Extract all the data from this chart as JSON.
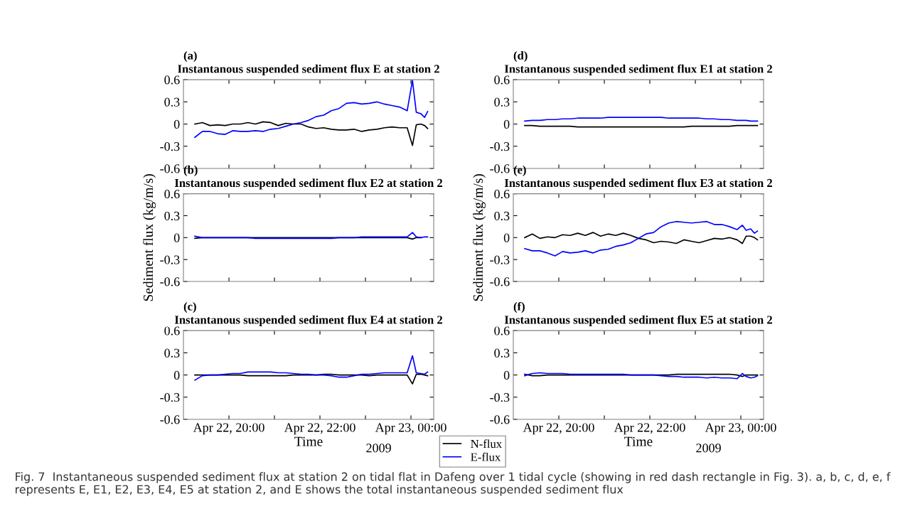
{
  "chart_data": [
    {
      "type": "line",
      "title": "(a)",
      "subtitle": "Instantanous suspended sediment flux E at station 2",
      "tick_labels": "y",
      "x": [
        "2009-04-22T19:15",
        "2009-04-22T19:25",
        "2009-04-22T19:35",
        "2009-04-22T19:45",
        "2009-04-22T19:55",
        "2009-04-22T20:05",
        "2009-04-22T20:15",
        "2009-04-22T20:25",
        "2009-04-22T20:35",
        "2009-04-22T20:45",
        "2009-04-22T20:55",
        "2009-04-22T21:05",
        "2009-04-22T21:15",
        "2009-04-22T21:25",
        "2009-04-22T21:35",
        "2009-04-22T21:45",
        "2009-04-22T21:55",
        "2009-04-22T22:05",
        "2009-04-22T22:15",
        "2009-04-22T22:25",
        "2009-04-22T22:35",
        "2009-04-22T22:45",
        "2009-04-22T22:55",
        "2009-04-22T23:05",
        "2009-04-22T23:15",
        "2009-04-22T23:25",
        "2009-04-22T23:35",
        "2009-04-22T23:45",
        "2009-04-22T23:55",
        "2009-04-23T00:02",
        "2009-04-23T00:07",
        "2009-04-23T00:13",
        "2009-04-23T00:18",
        "2009-04-23T00:22"
      ],
      "xlim": [
        "2009-04-22T19:00",
        "2009-04-23T00:30"
      ],
      "xticks": [
        {
          "value": "2009-04-22T20:00",
          "label": null
        },
        {
          "value": "2009-04-22T21:00",
          "label": null
        },
        {
          "value": "2009-04-22T22:00",
          "label": null
        },
        {
          "value": "2009-04-22T23:00",
          "label": null
        },
        {
          "value": "2009-04-23T00:00",
          "label": null
        }
      ],
      "ylim": [
        -0.6,
        0.6
      ],
      "yticks": [
        -0.6,
        -0.3,
        0,
        0.3,
        0.6
      ],
      "series": [
        {
          "color": "#000000",
          "values": [
            0.0,
            0.02,
            -0.02,
            -0.01,
            -0.02,
            0.0,
            0.0,
            0.02,
            0.0,
            0.03,
            0.02,
            -0.02,
            0.01,
            0.0,
            0.0,
            -0.04,
            -0.06,
            -0.05,
            -0.07,
            -0.08,
            -0.08,
            -0.07,
            -0.1,
            -0.08,
            -0.07,
            -0.05,
            -0.04,
            -0.05,
            -0.05,
            -0.29,
            -0.01,
            0.0,
            -0.02,
            -0.06
          ]
        },
        {
          "color": "#0000ff",
          "values": [
            -0.18,
            -0.1,
            -0.1,
            -0.13,
            -0.14,
            -0.09,
            -0.1,
            -0.1,
            -0.09,
            -0.1,
            -0.07,
            -0.06,
            -0.03,
            0.0,
            0.02,
            0.05,
            0.1,
            0.12,
            0.18,
            0.21,
            0.28,
            0.29,
            0.27,
            0.28,
            0.3,
            0.27,
            0.25,
            0.23,
            0.18,
            0.59,
            0.16,
            0.14,
            0.09,
            0.17
          ]
        }
      ]
    },
    {
      "type": "line",
      "title": "(d)",
      "subtitle": "Instantanous suspended sediment flux E1 at station 2",
      "tick_labels": "y",
      "x": [
        "2009-04-22T19:15",
        "2009-04-22T19:25",
        "2009-04-22T19:35",
        "2009-04-22T19:45",
        "2009-04-22T19:55",
        "2009-04-22T20:05",
        "2009-04-22T20:15",
        "2009-04-22T20:25",
        "2009-04-22T20:35",
        "2009-04-22T20:45",
        "2009-04-22T20:55",
        "2009-04-22T21:05",
        "2009-04-22T21:15",
        "2009-04-22T21:25",
        "2009-04-22T21:35",
        "2009-04-22T21:45",
        "2009-04-22T21:55",
        "2009-04-22T22:05",
        "2009-04-22T22:15",
        "2009-04-22T22:25",
        "2009-04-22T22:35",
        "2009-04-22T22:45",
        "2009-04-22T22:55",
        "2009-04-22T23:05",
        "2009-04-22T23:15",
        "2009-04-22T23:25",
        "2009-04-22T23:35",
        "2009-04-22T23:45",
        "2009-04-22T23:55",
        "2009-04-23T00:02",
        "2009-04-23T00:07",
        "2009-04-23T00:13",
        "2009-04-23T00:18",
        "2009-04-23T00:22"
      ],
      "xlim": [
        "2009-04-22T19:00",
        "2009-04-23T00:30"
      ],
      "xticks": [
        {
          "value": "2009-04-22T20:00",
          "label": null
        },
        {
          "value": "2009-04-22T21:00",
          "label": null
        },
        {
          "value": "2009-04-22T22:00",
          "label": null
        },
        {
          "value": "2009-04-22T23:00",
          "label": null
        },
        {
          "value": "2009-04-23T00:00",
          "label": null
        }
      ],
      "ylim": [
        -0.6,
        0.6
      ],
      "yticks": [
        -0.6,
        -0.3,
        0,
        0.3,
        0.6
      ],
      "series": [
        {
          "color": "#000000",
          "values": [
            -0.02,
            -0.02,
            -0.03,
            -0.03,
            -0.03,
            -0.03,
            -0.03,
            -0.04,
            -0.04,
            -0.04,
            -0.04,
            -0.04,
            -0.04,
            -0.04,
            -0.04,
            -0.04,
            -0.04,
            -0.04,
            -0.04,
            -0.04,
            -0.04,
            -0.04,
            -0.03,
            -0.03,
            -0.03,
            -0.03,
            -0.03,
            -0.03,
            -0.02,
            -0.02,
            -0.02,
            -0.02,
            -0.02,
            -0.02
          ]
        },
        {
          "color": "#0000ff",
          "values": [
            0.04,
            0.05,
            0.05,
            0.06,
            0.06,
            0.07,
            0.07,
            0.08,
            0.08,
            0.08,
            0.08,
            0.09,
            0.09,
            0.09,
            0.09,
            0.09,
            0.09,
            0.09,
            0.09,
            0.08,
            0.08,
            0.08,
            0.08,
            0.08,
            0.07,
            0.07,
            0.06,
            0.06,
            0.05,
            0.05,
            0.05,
            0.04,
            0.04,
            0.04
          ]
        }
      ]
    },
    {
      "type": "line",
      "title": "(b)",
      "subtitle": "Instantanous suspended sediment flux E2 at station 2",
      "ylabel": "Sediment flux (kg/m/s)",
      "tick_labels": "y",
      "x": [
        "2009-04-22T19:15",
        "2009-04-22T19:25",
        "2009-04-22T19:35",
        "2009-04-22T19:45",
        "2009-04-22T19:55",
        "2009-04-22T20:05",
        "2009-04-22T20:15",
        "2009-04-22T20:25",
        "2009-04-22T20:35",
        "2009-04-22T20:45",
        "2009-04-22T20:55",
        "2009-04-22T21:05",
        "2009-04-22T21:15",
        "2009-04-22T21:25",
        "2009-04-22T21:35",
        "2009-04-22T21:45",
        "2009-04-22T21:55",
        "2009-04-22T22:05",
        "2009-04-22T22:15",
        "2009-04-22T22:25",
        "2009-04-22T22:35",
        "2009-04-22T22:45",
        "2009-04-22T22:55",
        "2009-04-22T23:05",
        "2009-04-22T23:15",
        "2009-04-22T23:25",
        "2009-04-22T23:35",
        "2009-04-22T23:45",
        "2009-04-22T23:55",
        "2009-04-23T00:02",
        "2009-04-23T00:07",
        "2009-04-23T00:13",
        "2009-04-23T00:18",
        "2009-04-23T00:22"
      ],
      "xlim": [
        "2009-04-22T19:00",
        "2009-04-23T00:30"
      ],
      "xticks": [
        {
          "value": "2009-04-22T20:00",
          "label": null
        },
        {
          "value": "2009-04-22T21:00",
          "label": null
        },
        {
          "value": "2009-04-22T22:00",
          "label": null
        },
        {
          "value": "2009-04-22T23:00",
          "label": null
        },
        {
          "value": "2009-04-23T00:00",
          "label": null
        }
      ],
      "ylim": [
        -0.6,
        0.6
      ],
      "yticks": [
        -0.6,
        -0.3,
        0,
        0.3,
        0.6
      ],
      "series": [
        {
          "color": "#000000",
          "values": [
            -0.01,
            0.0,
            0.0,
            0.0,
            0.0,
            0.0,
            0.0,
            0.0,
            0.0,
            0.0,
            0.0,
            0.0,
            0.0,
            0.0,
            0.0,
            0.0,
            0.0,
            0.0,
            0.0,
            0.0,
            0.0,
            0.0,
            0.0,
            0.0,
            0.0,
            0.0,
            0.0,
            0.0,
            0.0,
            -0.02,
            0.0,
            0.0,
            null,
            null
          ]
        },
        {
          "color": "#0000ff",
          "values": [
            0.02,
            0.0,
            0.0,
            0.0,
            0.0,
            0.0,
            0.0,
            0.0,
            -0.01,
            -0.01,
            -0.01,
            -0.01,
            -0.01,
            -0.01,
            -0.01,
            -0.01,
            -0.01,
            -0.01,
            -0.01,
            0.0,
            0.0,
            0.0,
            0.01,
            0.01,
            0.01,
            0.01,
            0.01,
            0.01,
            0.01,
            0.07,
            0.01,
            0.0,
            0.01,
            0.01
          ]
        }
      ]
    },
    {
      "type": "line",
      "title": "(e)",
      "subtitle": "Instantanous suspended sediment flux E3 at station 2",
      "ylabel": "Sediment flux (kg/m/s)",
      "tick_labels": "y",
      "x": [
        "2009-04-22T19:15",
        "2009-04-22T19:25",
        "2009-04-22T19:35",
        "2009-04-22T19:45",
        "2009-04-22T19:55",
        "2009-04-22T20:05",
        "2009-04-22T20:15",
        "2009-04-22T20:25",
        "2009-04-22T20:35",
        "2009-04-22T20:45",
        "2009-04-22T20:55",
        "2009-04-22T21:05",
        "2009-04-22T21:15",
        "2009-04-22T21:25",
        "2009-04-22T21:35",
        "2009-04-22T21:45",
        "2009-04-22T21:55",
        "2009-04-22T22:05",
        "2009-04-22T22:15",
        "2009-04-22T22:25",
        "2009-04-22T22:35",
        "2009-04-22T22:45",
        "2009-04-22T22:55",
        "2009-04-22T23:05",
        "2009-04-22T23:15",
        "2009-04-22T23:25",
        "2009-04-22T23:35",
        "2009-04-22T23:45",
        "2009-04-22T23:55",
        "2009-04-23T00:02",
        "2009-04-23T00:07",
        "2009-04-23T00:13",
        "2009-04-23T00:18",
        "2009-04-23T00:22"
      ],
      "xlim": [
        "2009-04-22T19:00",
        "2009-04-23T00:30"
      ],
      "xticks": [
        {
          "value": "2009-04-22T20:00",
          "label": null
        },
        {
          "value": "2009-04-22T21:00",
          "label": null
        },
        {
          "value": "2009-04-22T22:00",
          "label": null
        },
        {
          "value": "2009-04-22T23:00",
          "label": null
        },
        {
          "value": "2009-04-23T00:00",
          "label": null
        }
      ],
      "ylim": [
        -0.6,
        0.6
      ],
      "yticks": [
        -0.6,
        -0.3,
        0,
        0.3,
        0.6
      ],
      "series": [
        {
          "color": "#000000",
          "values": [
            0.0,
            0.05,
            -0.01,
            0.01,
            0.0,
            0.04,
            0.03,
            0.06,
            0.03,
            0.07,
            0.02,
            0.05,
            0.03,
            0.06,
            0.03,
            -0.01,
            -0.03,
            -0.07,
            -0.05,
            -0.06,
            -0.08,
            -0.03,
            -0.05,
            -0.07,
            -0.04,
            -0.01,
            -0.02,
            0.0,
            -0.03,
            -0.08,
            0.02,
            0.02,
            0.0,
            -0.03
          ]
        },
        {
          "color": "#0000ff",
          "values": [
            -0.15,
            -0.18,
            -0.18,
            -0.21,
            -0.25,
            -0.19,
            -0.21,
            -0.2,
            -0.18,
            -0.21,
            -0.17,
            -0.16,
            -0.12,
            -0.1,
            -0.07,
            -0.01,
            0.05,
            0.07,
            0.15,
            0.2,
            0.22,
            0.21,
            0.2,
            0.21,
            0.22,
            0.18,
            0.18,
            0.15,
            0.11,
            0.17,
            0.1,
            0.12,
            0.06,
            0.09
          ]
        }
      ]
    },
    {
      "type": "line",
      "title": "(c)",
      "subtitle": "Instantanous suspended sediment flux E4 at station 2",
      "xlabel": "Time",
      "legend": "bottom right",
      "annotations": [
        "2009",
        "Fig. 7  Instantaneous suspended sediment flux at station 2 on tidal flat in Dafeng over 1 tidal cycle (showing in red dash rectangle in Fig. 3). a, b, c, d, e, f represents E, E1, E2, E3, E4, E5 at station 2, and E shows the total instantaneous suspended sediment flux"
      ],
      "x": [
        "2009-04-22T19:15",
        "2009-04-22T19:25",
        "2009-04-22T19:35",
        "2009-04-22T19:45",
        "2009-04-22T19:55",
        "2009-04-22T20:05",
        "2009-04-22T20:15",
        "2009-04-22T20:25",
        "2009-04-22T20:35",
        "2009-04-22T20:45",
        "2009-04-22T20:55",
        "2009-04-22T21:05",
        "2009-04-22T21:15",
        "2009-04-22T21:25",
        "2009-04-22T21:35",
        "2009-04-22T21:45",
        "2009-04-22T21:55",
        "2009-04-22T22:05",
        "2009-04-22T22:15",
        "2009-04-22T22:25",
        "2009-04-22T22:35",
        "2009-04-22T22:45",
        "2009-04-22T22:55",
        "2009-04-22T23:05",
        "2009-04-22T23:15",
        "2009-04-22T23:25",
        "2009-04-22T23:35",
        "2009-04-22T23:45",
        "2009-04-22T23:55",
        "2009-04-23T00:02",
        "2009-04-23T00:07",
        "2009-04-23T00:13",
        "2009-04-23T00:18",
        "2009-04-23T00:22"
      ],
      "xlim": [
        "2009-04-22T19:00",
        "2009-04-23T00:30"
      ],
      "xticks": [
        {
          "value": "2009-04-22T20:00",
          "label": "Apr 22, 20:00"
        },
        {
          "value": "2009-04-22T21:00",
          "label": null
        },
        {
          "value": "2009-04-22T22:00",
          "label": "Apr 22, 22:00"
        },
        {
          "value": "2009-04-22T23:00",
          "label": null
        },
        {
          "value": "2009-04-23T00:00",
          "label": "Apr 23, 00:00"
        }
      ],
      "ylim": [
        -0.6,
        0.6
      ],
      "yticks": [
        -0.6,
        -0.3,
        0,
        0.3,
        0.6
      ],
      "series": [
        {
          "name": "N-flux",
          "color": "#000000",
          "values": [
            0.0,
            0.0,
            0.0,
            0.0,
            0.0,
            0.0,
            0.0,
            -0.01,
            -0.01,
            -0.01,
            -0.01,
            -0.01,
            -0.01,
            0.0,
            0.0,
            0.0,
            0.0,
            0.01,
            0.01,
            0.0,
            0.0,
            0.0,
            0.0,
            -0.01,
            0.0,
            0.0,
            0.0,
            0.0,
            0.0,
            -0.12,
            0.01,
            0.01,
            0.0,
            -0.01
          ]
        },
        {
          "name": "E-flux",
          "color": "#0000ff",
          "values": [
            -0.07,
            -0.01,
            0.0,
            0.0,
            0.01,
            0.02,
            0.02,
            0.04,
            0.04,
            0.04,
            0.04,
            0.03,
            0.03,
            0.02,
            0.01,
            0.01,
            0.0,
            0.0,
            -0.01,
            -0.03,
            -0.03,
            -0.01,
            0.01,
            0.01,
            0.02,
            0.03,
            0.03,
            0.03,
            0.03,
            0.26,
            0.03,
            0.02,
            0.01,
            0.04
          ]
        }
      ]
    },
    {
      "type": "line",
      "title": "(f)",
      "subtitle": "Instantanous suspended sediment flux E5 at station 2",
      "xlabel": "Time",
      "annotations": [
        "2009"
      ],
      "x": [
        "2009-04-22T19:15",
        "2009-04-22T19:25",
        "2009-04-22T19:35",
        "2009-04-22T19:45",
        "2009-04-22T19:55",
        "2009-04-22T20:05",
        "2009-04-22T20:15",
        "2009-04-22T20:25",
        "2009-04-22T20:35",
        "2009-04-22T20:45",
        "2009-04-22T20:55",
        "2009-04-22T21:05",
        "2009-04-22T21:15",
        "2009-04-22T21:25",
        "2009-04-22T21:35",
        "2009-04-22T21:45",
        "2009-04-22T21:55",
        "2009-04-22T22:05",
        "2009-04-22T22:15",
        "2009-04-22T22:25",
        "2009-04-22T22:35",
        "2009-04-22T22:45",
        "2009-04-22T22:55",
        "2009-04-22T23:05",
        "2009-04-22T23:15",
        "2009-04-22T23:25",
        "2009-04-22T23:35",
        "2009-04-22T23:45",
        "2009-04-22T23:55",
        "2009-04-23T00:02",
        "2009-04-23T00:07",
        "2009-04-23T00:13",
        "2009-04-23T00:18",
        "2009-04-23T00:22"
      ],
      "xlim": [
        "2009-04-22T19:00",
        "2009-04-23T00:30"
      ],
      "xticks": [
        {
          "value": "2009-04-22T20:00",
          "label": "Apr 22, 20:00"
        },
        {
          "value": "2009-04-22T21:00",
          "label": null
        },
        {
          "value": "2009-04-22T22:00",
          "label": "Apr 22, 22:00"
        },
        {
          "value": "2009-04-22T23:00",
          "label": null
        },
        {
          "value": "2009-04-23T00:00",
          "label": "Apr 23, 00:00"
        }
      ],
      "ylim": [
        -0.6,
        0.6
      ],
      "yticks": [
        -0.6,
        -0.3,
        0,
        0.3,
        0.6
      ],
      "series": [
        {
          "color": "#000000",
          "values": [
            0.01,
            -0.01,
            -0.01,
            0.0,
            0.0,
            0.0,
            0.0,
            0.0,
            0.0,
            0.0,
            0.0,
            0.0,
            0.0,
            0.0,
            0.0,
            0.0,
            0.0,
            0.0,
            0.0,
            0.0,
            0.01,
            0.01,
            0.01,
            0.01,
            0.01,
            0.01,
            0.01,
            0.01,
            0.0,
            -0.02,
            0.0,
            0.0,
            0.0,
            0.0
          ]
        },
        {
          "color": "#0000ff",
          "values": [
            -0.01,
            0.02,
            0.03,
            0.02,
            0.02,
            0.02,
            0.01,
            0.01,
            0.01,
            0.01,
            0.01,
            0.01,
            0.01,
            0.01,
            0.0,
            0.0,
            0.0,
            0.0,
            -0.01,
            -0.02,
            -0.02,
            -0.03,
            -0.03,
            -0.03,
            -0.04,
            -0.03,
            -0.04,
            -0.04,
            -0.05,
            0.02,
            -0.02,
            -0.04,
            -0.03,
            -0.01
          ]
        }
      ]
    }
  ]
}
